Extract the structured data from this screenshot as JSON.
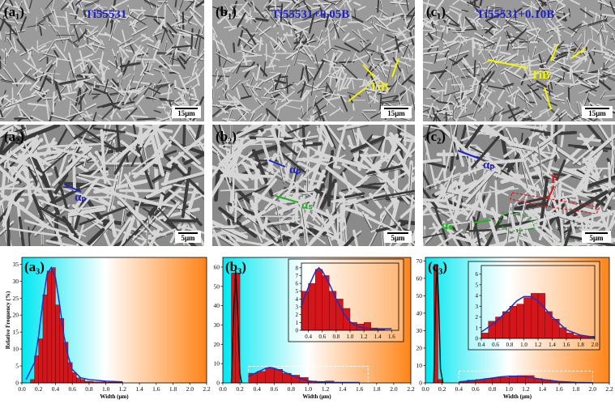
{
  "panels": [
    {
      "label": "(a₁)",
      "caption": "Ti55531",
      "scale_bar": "15μm"
    },
    {
      "label": "(b₁)",
      "caption": "Ti55531+0.05B",
      "scale_bar": "15μm",
      "annotations": [
        "TiB"
      ]
    },
    {
      "label": "(c₁)",
      "caption": "Ti55531+0.10B",
      "scale_bar": "15μm",
      "annotations": [
        "TiB"
      ]
    },
    {
      "label": "(a₂)",
      "scale_bar": "5μm",
      "annotations": [
        "αₚ"
      ]
    },
    {
      "label": "(b₂)",
      "scale_bar": "5μm",
      "annotations": [
        "αₚ",
        "αₛ"
      ]
    },
    {
      "label": "(c₂)",
      "scale_bar": "5μm",
      "annotations": [
        "αₚ",
        "F",
        "αₛ"
      ]
    }
  ],
  "chart_data": [
    {
      "type": "histogram",
      "title": "(a₃)",
      "xlabel": "Width (μm)",
      "ylabel": "Relative Frequency (%)",
      "color": "#d3161b",
      "bins": [
        0.1,
        0.15,
        0.2,
        0.25,
        0.3,
        0.35,
        0.4,
        0.45,
        0.5,
        0.55,
        0.6,
        0.65,
        0.7,
        0.75,
        0.8,
        0.85,
        0.9,
        0.95,
        1.0,
        1.05,
        1.1,
        1.15,
        1.2
      ],
      "counts": [
        1,
        8,
        13,
        26,
        33,
        34,
        23,
        19,
        12,
        6,
        3,
        1.5,
        1,
        0.5,
        0.5,
        0.3,
        0.3,
        0.3,
        0.2,
        0.2,
        0.2,
        0.2
      ],
      "fit": {
        "color": "#1f2fbf",
        "x": [
          0.05,
          0.15,
          0.2,
          0.25,
          0.3,
          0.35,
          0.4,
          0.45,
          0.5,
          0.55,
          0.6,
          0.7,
          0.8,
          1.0,
          1.2
        ],
        "y": [
          1,
          6,
          14,
          24,
          32,
          34,
          31,
          23,
          14,
          8,
          4,
          1.5,
          1,
          0.5,
          0.3
        ]
      },
      "xlim": [
        0,
        2.2
      ],
      "xticks": [
        {
          "value": 0,
          "label": "0.0"
        },
        0.2,
        0.4,
        0.6,
        0.8,
        {
          "value": 1,
          "label": "1.0"
        },
        1.2,
        1.4,
        1.6,
        1.8,
        {
          "value": 2,
          "label": "2.0"
        },
        2.2
      ],
      "ylim": [
        0,
        37
      ],
      "yticks": [
        0,
        5,
        10,
        15,
        20,
        25,
        30,
        35
      ]
    },
    {
      "type": "histogram",
      "title": "(b₃)",
      "xlabel": "Width (μm)",
      "color": "#d3161b",
      "bins": [
        0.1,
        0.15,
        0.2
      ],
      "counts": [
        57,
        57
      ],
      "fit": {
        "color": "#111111",
        "x": [
          0.1,
          0.13,
          0.15,
          0.17,
          0.2,
          0.22
        ],
        "y": [
          0,
          40,
          58,
          40,
          5,
          0
        ]
      },
      "xlim": [
        0,
        2.2
      ],
      "xticks": [
        {
          "value": 0,
          "label": "0.0"
        },
        0.2,
        0.4,
        0.6,
        0.8,
        {
          "value": 1,
          "label": "1.0"
        },
        1.2,
        1.4,
        1.6,
        1.8,
        {
          "value": 2,
          "label": "2.0"
        },
        2.2
      ],
      "ylim": [
        0,
        65
      ],
      "yticks": [
        0,
        10,
        20,
        30,
        40,
        50,
        60
      ],
      "inset": {
        "bins": [
          0.3,
          0.4,
          0.5,
          0.6,
          0.7,
          0.8,
          0.9,
          1.0,
          1.1,
          1.2,
          1.3,
          1.4,
          1.5
        ],
        "counts": [
          5,
          6,
          7.8,
          7,
          5,
          4,
          2.8,
          1,
          0.8,
          1,
          0.3,
          0.2
        ],
        "fit": {
          "color": "#1f2fbf",
          "x": [
            0.3,
            0.4,
            0.5,
            0.55,
            0.6,
            0.7,
            0.8,
            0.9,
            1.0,
            1.1,
            1.2,
            1.4,
            1.6
          ],
          "y": [
            3.2,
            5.5,
            7.5,
            8,
            7.6,
            6,
            4,
            2.3,
            1.1,
            0.5,
            0.3,
            0.2,
            0.2
          ]
        },
        "xlim": [
          0.3,
          1.7
        ],
        "xticks": [
          0.4,
          0.6,
          0.8,
          {
            "value": 1,
            "label": "1.0"
          },
          1.2,
          1.4,
          1.6
        ],
        "ylim": [
          0,
          8.6
        ],
        "yticks": [
          0,
          1,
          2,
          3,
          4,
          5,
          6,
          7,
          8
        ]
      }
    },
    {
      "type": "histogram",
      "title": "(c₃)",
      "xlabel": "Width (μm)",
      "color": "#d3161b",
      "bins": [
        0.1,
        0.15,
        0.2
      ],
      "counts": [
        68,
        2
      ],
      "fit": {
        "color": "#111111",
        "x": [
          0.1,
          0.12,
          0.14,
          0.16,
          0.18,
          0.21
        ],
        "y": [
          0,
          45,
          68,
          45,
          8,
          0
        ]
      },
      "xlim": [
        0,
        2.2
      ],
      "xticks": [
        {
          "value": 0,
          "label": "0.0"
        },
        0.2,
        0.4,
        0.6,
        0.8,
        {
          "value": 1,
          "label": "1.0"
        },
        1.2,
        1.4,
        1.6,
        1.8,
        {
          "value": 2,
          "label": "2.0"
        },
        2.2
      ],
      "ylim": [
        0,
        72
      ],
      "yticks": [
        0,
        10,
        20,
        30,
        40,
        50,
        60,
        70
      ],
      "inset": {
        "bins": [
          0.4,
          0.5,
          0.6,
          0.7,
          0.8,
          0.9,
          1.0,
          1.1,
          1.2,
          1.3,
          1.4,
          1.5,
          1.6,
          1.7,
          1.8,
          1.9,
          2.0
        ],
        "counts": [
          0.5,
          1.6,
          2,
          2.5,
          3,
          3.2,
          3.8,
          4.2,
          4.2,
          2.5,
          1.8,
          1,
          0.5,
          0.3,
          0.2,
          0.2
        ],
        "fit": {
          "color": "#1f2fbf",
          "x": [
            0.4,
            0.6,
            0.8,
            0.9,
            1.0,
            1.1,
            1.2,
            1.3,
            1.4,
            1.6,
            1.8,
            2.0
          ],
          "y": [
            0.6,
            1.5,
            2.8,
            3.5,
            3.9,
            3.9,
            3.5,
            2.8,
            2,
            0.8,
            0.3,
            0.1
          ]
        },
        "xlim": [
          0.4,
          2.0
        ],
        "xticks": [
          0.4,
          0.6,
          0.8,
          {
            "value": 1,
            "label": "1.0"
          },
          1.2,
          1.4,
          1.6,
          1.8,
          {
            "value": 2,
            "label": "2.0"
          }
        ],
        "ylim": [
          0,
          6.8
        ],
        "yticks": [
          0,
          1,
          2,
          3,
          4,
          5,
          6
        ]
      }
    }
  ]
}
